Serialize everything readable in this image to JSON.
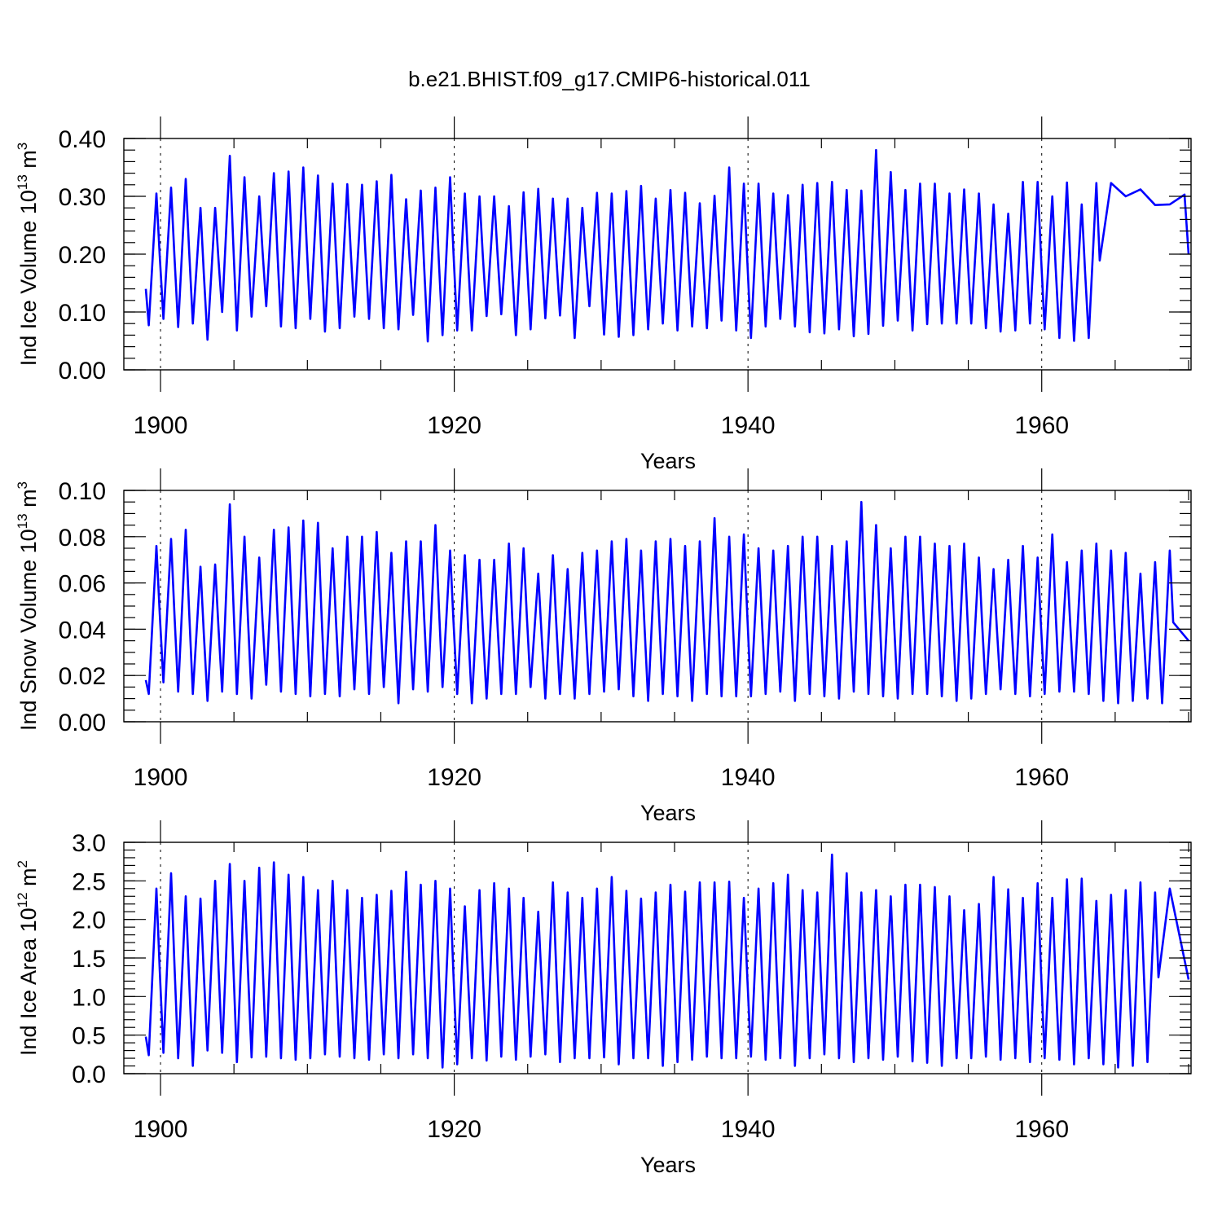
{
  "figure": {
    "title": "b.e21.BHIST.f09_g17.CMIP6-historical.011",
    "line_color": "#0000ff"
  },
  "chart_data": [
    {
      "type": "line",
      "id": "ice-volume",
      "ylabel_main": "Ind Ice Volume 10",
      "ylabel_sup": "13",
      "ylabel_unit": " m",
      "ylabel_unit_sup": "3",
      "xlabel": "Years",
      "xlim": [
        1899.0,
        1970.0
      ],
      "ylim": [
        0.0,
        0.4
      ],
      "yticks": [
        0.0,
        0.1,
        0.2,
        0.3,
        0.4
      ],
      "ytick_labels": [
        "0.00",
        "0.10",
        "0.20",
        "0.30",
        "0.40"
      ],
      "yminor": 0.02,
      "xticks": [
        1900,
        1920,
        1940,
        1960
      ],
      "xtick_labels": [
        "1900",
        "1920",
        "1940",
        "1960"
      ],
      "start": 0.14,
      "end": 0.2,
      "peaks": [
        0.305,
        0.315,
        0.33,
        0.28,
        0.28,
        0.37,
        0.333,
        0.3,
        0.34,
        0.343,
        0.35,
        0.336,
        0.322,
        0.321,
        0.32,
        0.326,
        0.337,
        0.295,
        0.31,
        0.315,
        0.333,
        0.305,
        0.3,
        0.3,
        0.283,
        0.307,
        0.313,
        0.296,
        0.296,
        0.28,
        0.306,
        0.305,
        0.309,
        0.318,
        0.296,
        0.311,
        0.306,
        0.288,
        0.301,
        0.35,
        0.322,
        0.322,
        0.305,
        0.302,
        0.32,
        0.323,
        0.325,
        0.311,
        0.31,
        0.38,
        0.342,
        0.311,
        0.322,
        0.322,
        0.305,
        0.312,
        0.305,
        0.286,
        0.27,
        0.325,
        0.325,
        0.3,
        0.324,
        0.286,
        0.323,
        0.323,
        0.3,
        0.312,
        0.285,
        0.286,
        0.303
      ],
      "troughs": [
        0.077,
        0.088,
        0.074,
        0.08,
        0.052,
        0.1,
        0.068,
        0.092,
        0.11,
        0.075,
        0.072,
        0.088,
        0.066,
        0.072,
        0.092,
        0.088,
        0.072,
        0.07,
        0.095,
        0.049,
        0.06,
        0.068,
        0.068,
        0.093,
        0.096,
        0.06,
        0.07,
        0.089,
        0.094,
        0.055,
        0.11,
        0.061,
        0.057,
        0.06,
        0.07,
        0.08,
        0.068,
        0.075,
        0.072,
        0.085,
        0.068,
        0.055,
        0.075,
        0.088,
        0.075,
        0.065,
        0.063,
        0.07,
        0.058,
        0.062,
        0.076,
        0.085,
        0.068,
        0.079,
        0.08,
        0.08,
        0.08,
        0.072,
        0.066,
        0.068,
        0.08,
        0.07,
        0.055,
        0.05,
        0.055
      ]
    },
    {
      "type": "line",
      "id": "snow-volume",
      "ylabel_main": "Ind Snow Volume 10",
      "ylabel_sup": "13",
      "ylabel_unit": " m",
      "ylabel_unit_sup": "3",
      "xlabel": "Years",
      "xlim": [
        1899.0,
        1970.0
      ],
      "ylim": [
        0.0,
        0.1
      ],
      "yticks": [
        0.0,
        0.02,
        0.04,
        0.06,
        0.08,
        0.1
      ],
      "ytick_labels": [
        "0.00",
        "0.02",
        "0.04",
        "0.06",
        "0.08",
        "0.10"
      ],
      "yminor": 0.005,
      "xticks": [
        1900,
        1920,
        1940,
        1960
      ],
      "xtick_labels": [
        "1900",
        "1920",
        "1940",
        "1960"
      ],
      "start": 0.018,
      "end": 0.035,
      "peaks": [
        0.076,
        0.079,
        0.083,
        0.067,
        0.068,
        0.094,
        0.08,
        0.071,
        0.083,
        0.084,
        0.087,
        0.086,
        0.075,
        0.08,
        0.08,
        0.082,
        0.073,
        0.078,
        0.078,
        0.085,
        0.074,
        0.072,
        0.07,
        0.07,
        0.077,
        0.075,
        0.064,
        0.072,
        0.066,
        0.073,
        0.074,
        0.078,
        0.079,
        0.074,
        0.078,
        0.079,
        0.076,
        0.078,
        0.088,
        0.08,
        0.081,
        0.075,
        0.074,
        0.076,
        0.08,
        0.08,
        0.076,
        0.078,
        0.095,
        0.085,
        0.075,
        0.08,
        0.08,
        0.077,
        0.076,
        0.077,
        0.071,
        0.066,
        0.07,
        0.076,
        0.071,
        0.081,
        0.069,
        0.074,
        0.077,
        0.074,
        0.073,
        0.064,
        0.069,
        0.074
      ],
      "troughs": [
        0.012,
        0.017,
        0.013,
        0.012,
        0.009,
        0.013,
        0.012,
        0.01,
        0.016,
        0.013,
        0.012,
        0.011,
        0.012,
        0.011,
        0.014,
        0.012,
        0.015,
        0.008,
        0.014,
        0.013,
        0.015,
        0.012,
        0.008,
        0.01,
        0.012,
        0.012,
        0.015,
        0.01,
        0.012,
        0.01,
        0.012,
        0.013,
        0.014,
        0.011,
        0.009,
        0.012,
        0.011,
        0.009,
        0.012,
        0.011,
        0.011,
        0.011,
        0.012,
        0.013,
        0.009,
        0.012,
        0.011,
        0.01,
        0.013,
        0.012,
        0.011,
        0.01,
        0.012,
        0.012,
        0.011,
        0.009,
        0.01,
        0.012,
        0.014,
        0.012,
        0.011,
        0.012,
        0.013,
        0.013,
        0.012,
        0.009,
        0.008,
        0.009,
        0.01,
        0.008,
        0.012
      ]
    },
    {
      "type": "line",
      "id": "ice-area",
      "ylabel_main": "Ind Ice Area 10",
      "ylabel_sup": "12",
      "ylabel_unit": " m",
      "ylabel_unit_sup": "2",
      "xlabel": "Years",
      "xlim": [
        1899.0,
        1970.0
      ],
      "ylim": [
        0.0,
        3.0
      ],
      "yticks": [
        0.0,
        0.5,
        1.0,
        1.5,
        2.0,
        2.5,
        3.0
      ],
      "ytick_labels": [
        "0.0",
        "0.5",
        "1.0",
        "1.5",
        "2.0",
        "2.5",
        "3.0"
      ],
      "yminor": 0.1,
      "xticks": [
        1900,
        1920,
        1940,
        1960
      ],
      "xtick_labels": [
        "1900",
        "1920",
        "1940",
        "1960"
      ],
      "start": 0.48,
      "end": 1.22,
      "peaks": [
        2.4,
        2.6,
        2.3,
        2.27,
        2.5,
        2.72,
        2.5,
        2.67,
        2.74,
        2.58,
        2.55,
        2.38,
        2.5,
        2.38,
        2.28,
        2.32,
        2.37,
        2.62,
        2.45,
        2.5,
        2.4,
        2.17,
        2.38,
        2.47,
        2.4,
        2.28,
        2.1,
        2.48,
        2.35,
        2.28,
        2.4,
        2.55,
        2.37,
        2.27,
        2.35,
        2.45,
        2.36,
        2.48,
        2.48,
        2.49,
        2.28,
        2.4,
        2.47,
        2.58,
        2.38,
        2.35,
        2.84,
        2.6,
        2.35,
        2.38,
        2.3,
        2.45,
        2.45,
        2.42,
        2.3,
        2.12,
        2.2,
        2.55,
        2.39,
        2.28,
        2.47,
        2.28,
        2.52,
        2.53,
        2.24,
        2.32,
        2.38,
        2.48,
        2.35,
        2.4
      ],
      "troughs": [
        0.24,
        0.27,
        0.2,
        0.1,
        0.3,
        0.27,
        0.15,
        0.21,
        0.22,
        0.2,
        0.18,
        0.2,
        0.25,
        0.22,
        0.2,
        0.18,
        0.25,
        0.2,
        0.25,
        0.2,
        0.08,
        0.12,
        0.2,
        0.17,
        0.22,
        0.18,
        0.22,
        0.25,
        0.15,
        0.2,
        0.2,
        0.21,
        0.12,
        0.2,
        0.2,
        0.1,
        0.15,
        0.18,
        0.22,
        0.2,
        0.2,
        0.22,
        0.18,
        0.2,
        0.1,
        0.2,
        0.25,
        0.2,
        0.15,
        0.2,
        0.18,
        0.22,
        0.16,
        0.14,
        0.1,
        0.2,
        0.2,
        0.22,
        0.18,
        0.2,
        0.15,
        0.2,
        0.18,
        0.12,
        0.2,
        0.12,
        0.08,
        0.1,
        0.15
      ]
    }
  ]
}
